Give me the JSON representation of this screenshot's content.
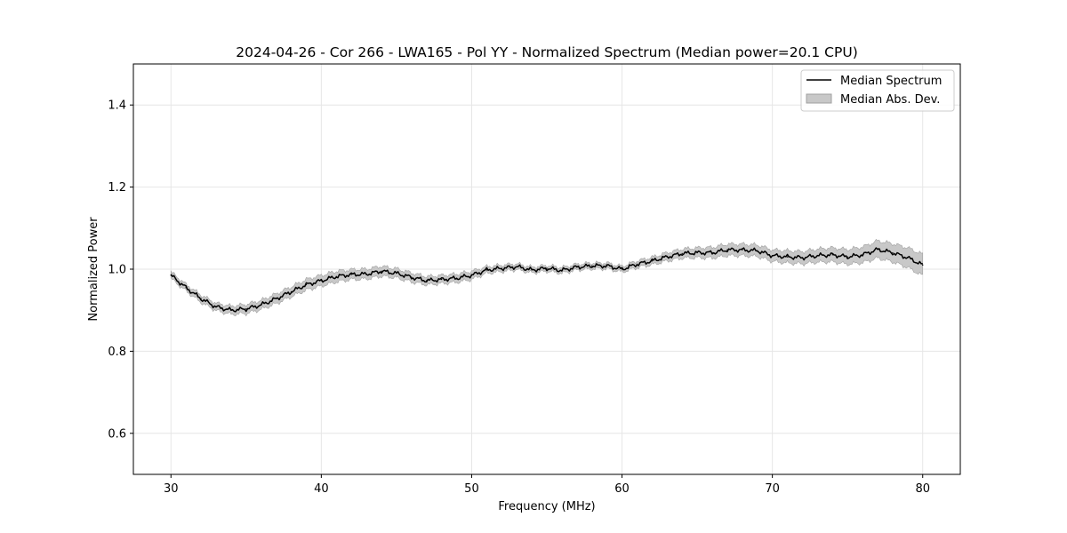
{
  "chart_data": {
    "type": "line",
    "title": "2024-04-26 - Cor 266 - LWA165 - Pol YY - Normalized Spectrum (Median power=20.1 CPU)",
    "xlabel": "Frequency (MHz)",
    "ylabel": "Normalized Power",
    "xlim": [
      27.5,
      82.5
    ],
    "ylim": [
      0.5,
      1.5
    ],
    "xticks": [
      30,
      40,
      50,
      60,
      70,
      80
    ],
    "xtick_labels": [
      "30",
      "40",
      "50",
      "60",
      "70",
      "80"
    ],
    "yticks": [
      0.6,
      0.8,
      1.0,
      1.2,
      1.4
    ],
    "ytick_labels": [
      "0.6",
      "0.8",
      "1.0",
      "1.2",
      "1.4"
    ],
    "grid": true,
    "legend": {
      "position": "top-right",
      "entries": [
        "Median Spectrum",
        "Median Abs. Dev."
      ]
    },
    "colors": {
      "line": "#000000",
      "band": "#c8c8c8",
      "band_edge": "#a0a0a0",
      "grid": "#e6e6e6"
    },
    "series": [
      {
        "name": "Median Spectrum",
        "x": [
          30,
          31,
          32,
          33,
          34,
          35,
          36,
          37,
          38,
          39,
          40,
          41,
          42,
          43,
          44,
          45,
          46,
          47,
          48,
          49,
          50,
          51,
          52,
          53,
          54,
          55,
          56,
          57,
          58,
          59,
          60,
          61,
          62,
          63,
          64,
          65,
          66,
          67,
          68,
          69,
          70,
          71,
          72,
          73,
          74,
          75,
          76,
          77,
          78,
          79,
          80
        ],
        "values": [
          0.985,
          0.955,
          0.928,
          0.908,
          0.9,
          0.903,
          0.913,
          0.928,
          0.945,
          0.962,
          0.972,
          0.982,
          0.987,
          0.988,
          0.995,
          0.99,
          0.98,
          0.972,
          0.975,
          0.978,
          0.985,
          0.998,
          1.002,
          1.006,
          0.998,
          1.002,
          0.997,
          1.005,
          1.008,
          1.008,
          1.0,
          1.012,
          1.02,
          1.03,
          1.038,
          1.04,
          1.04,
          1.047,
          1.047,
          1.045,
          1.033,
          1.03,
          1.028,
          1.033,
          1.035,
          1.03,
          1.035,
          1.048,
          1.04,
          1.028,
          1.01
        ],
        "mad": [
          0.008,
          0.008,
          0.009,
          0.009,
          0.01,
          0.011,
          0.011,
          0.012,
          0.012,
          0.013,
          0.013,
          0.013,
          0.012,
          0.012,
          0.012,
          0.011,
          0.011,
          0.01,
          0.01,
          0.01,
          0.01,
          0.008,
          0.008,
          0.007,
          0.007,
          0.007,
          0.007,
          0.007,
          0.007,
          0.007,
          0.007,
          0.008,
          0.009,
          0.01,
          0.011,
          0.012,
          0.013,
          0.014,
          0.014,
          0.014,
          0.014,
          0.015,
          0.015,
          0.016,
          0.017,
          0.018,
          0.019,
          0.021,
          0.022,
          0.024,
          0.026
        ]
      }
    ]
  }
}
